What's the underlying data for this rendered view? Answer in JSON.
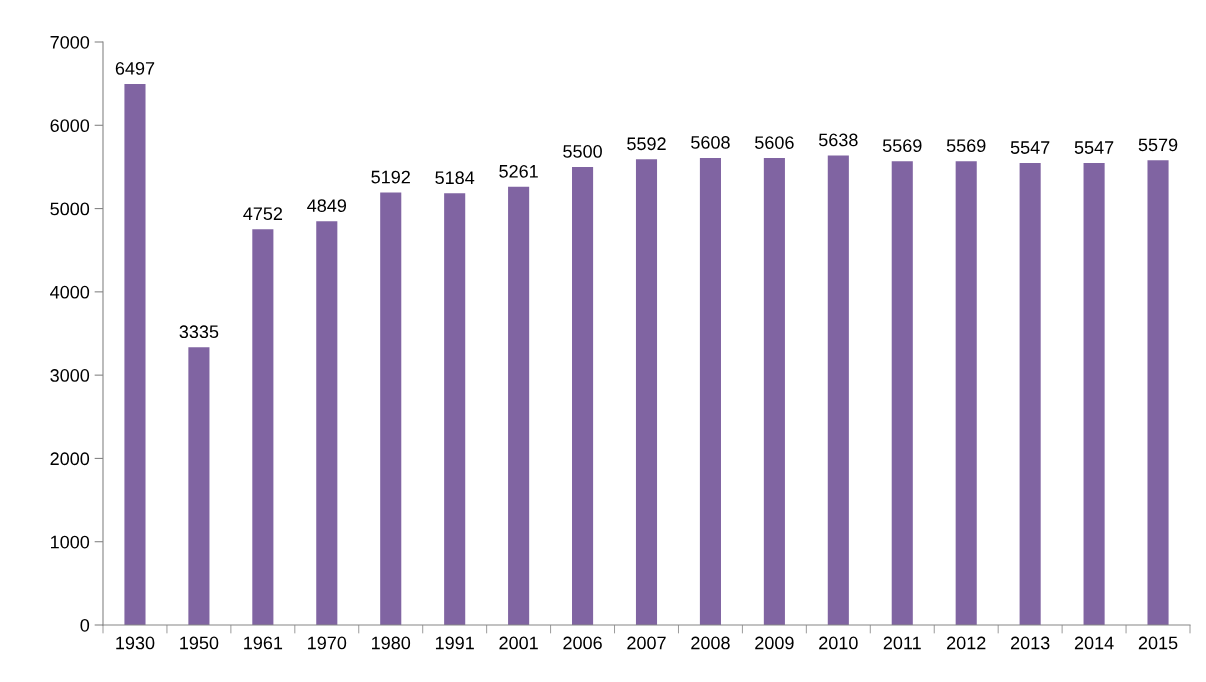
{
  "chart_data": {
    "type": "bar",
    "categories": [
      "1930",
      "1950",
      "1961",
      "1970",
      "1980",
      "1991",
      "2001",
      "2006",
      "2007",
      "2008",
      "2009",
      "2010",
      "2011",
      "2012",
      "2013",
      "2014",
      "2015"
    ],
    "values": [
      6497,
      3335,
      4752,
      4849,
      5192,
      5184,
      5261,
      5500,
      5592,
      5608,
      5606,
      5638,
      5569,
      5569,
      5547,
      5547,
      5579
    ],
    "color": "#8064a2",
    "ylim": [
      0,
      7000
    ],
    "yticks": [
      0,
      1000,
      2000,
      3000,
      4000,
      5000,
      6000,
      7000
    ],
    "data_labels": true,
    "grid": false,
    "legend": false
  }
}
